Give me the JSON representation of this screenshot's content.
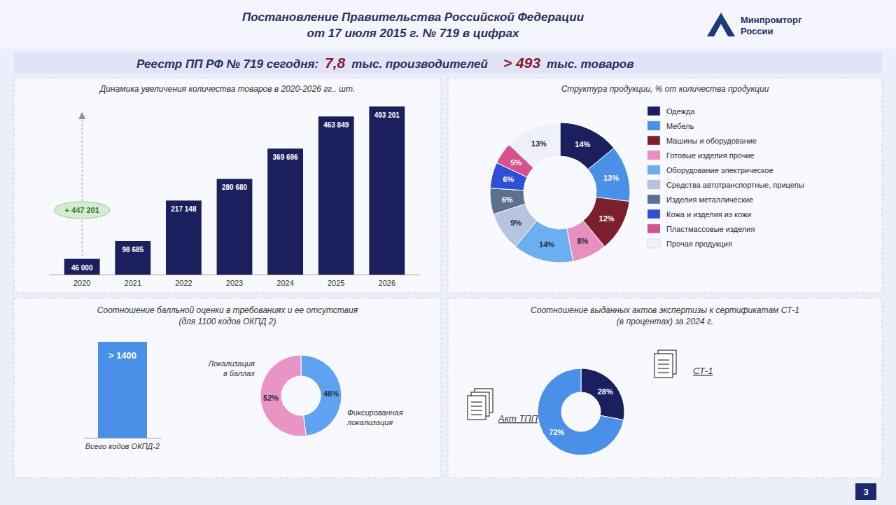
{
  "header": {
    "title_lines": [
      "Постановление Правительства Российской Федерации",
      "от 17 июля 2015 г. № 719 в цифрах"
    ],
    "logo": [
      "Минпромторг",
      "России"
    ],
    "page_number": "3"
  },
  "registry": {
    "label": "Реестр ПП РФ № 719 сегодня:",
    "producers": "7,8",
    "producers_unit": "тыс. производителей",
    "goods": "> 493",
    "goods_unit": "тыс. товаров"
  },
  "chart_data": [
    {
      "type": "bar",
      "title": "Динамика увеличения количества товаров в 2020-2026 гг., шт.",
      "categories": [
        "2020",
        "2021",
        "2022",
        "2023",
        "2024",
        "2025",
        "2026"
      ],
      "values": [
        46000,
        98685,
        217148,
        280680,
        369696,
        463849,
        493201
      ],
      "value_labels": [
        "46 000",
        "98 685",
        "217 148",
        "280 680",
        "369 696",
        "463 849",
        "493 201"
      ],
      "color": "#1b1f5e",
      "data_labels": true,
      "tick_labels": "x",
      "annotations": [
        "+ 447 201"
      ]
    },
    {
      "type": "pie",
      "title": "Структура продукции, % от количества продукции",
      "categories": [
        "Одежда",
        "Мебель",
        "Машины и оборудование",
        "Готовые изделия прочие",
        "Оборудование электрическое",
        "Средства автотранспортные, прицепы",
        "Изделия металлические",
        "Кожа и изделия из кожи",
        "Пластмассовые изделия",
        "Прочая продукция"
      ],
      "values": [
        14,
        13,
        12,
        8,
        14,
        9,
        6,
        6,
        5,
        13
      ],
      "value_labels": [
        "14%",
        "13%",
        "12%",
        "8%",
        "14%",
        "9%",
        "6%",
        "6%",
        "5%",
        "13%"
      ],
      "colors": [
        "#1b1f5e",
        "#4a8fe8",
        "#7a1f2b",
        "#e88fc0",
        "#6aaff0",
        "#b7c4e0",
        "#5b6f8f",
        "#2f4fd8",
        "#d8508f",
        "#eef0fa"
      ],
      "data_labels": true,
      "legend": "right"
    },
    {
      "type": "bar",
      "title": "Соотношение балльной оценки в требованиях и ее отсутствия",
      "subtitle": "(для 1100 кодов ОКПД 2)",
      "categories": [
        "Всего кодов ОКПД-2"
      ],
      "values": [
        1400
      ],
      "value_labels": [
        "> 1400"
      ],
      "color": "#4a8fe8",
      "data_labels": true,
      "tick_labels": "x"
    },
    {
      "type": "pie",
      "categories": [
        "Фиксированная локализация",
        "Локализация в баллах"
      ],
      "values": [
        48,
        52
      ],
      "value_labels": [
        "48%",
        "52%"
      ],
      "colors": [
        "#5ea3f2",
        "#e895c6"
      ],
      "data_labels": true
    },
    {
      "type": "pie",
      "title": "Соотношение выданных актов экспертизы к сертификатам СТ-1",
      "subtitle": "(в процентах) за 2024 г.",
      "categories": [
        "СТ-1",
        "Акт ТПП"
      ],
      "values": [
        28,
        72
      ],
      "value_labels": [
        "28%",
        "72%"
      ],
      "colors": [
        "#1b1f5e",
        "#4a8fe8"
      ],
      "data_labels": true
    }
  ]
}
